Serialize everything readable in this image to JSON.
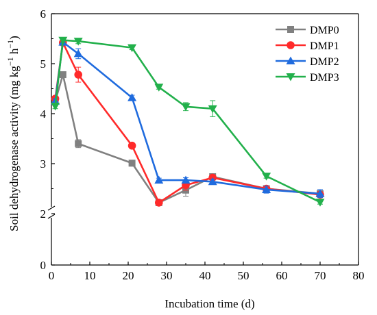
{
  "chart_data": {
    "type": "line",
    "xlabel": "Incubation time (d)",
    "ylabel": "Soil dehydrogenase activity (mg kg⁻¹ h⁻¹)",
    "ylabel_parts": [
      "Soil dehydrogenase activity (mg kg",
      "−1",
      " h",
      "−1",
      ")"
    ],
    "xlim": [
      0,
      80
    ],
    "ylim": [
      0,
      6
    ],
    "y_axis_break": [
      0,
      2
    ],
    "x_ticks": [
      "0",
      "10",
      "20",
      "30",
      "40",
      "50",
      "60",
      "70",
      "80"
    ],
    "y_ticks": [
      "0",
      "2",
      "3",
      "4",
      "5",
      "6"
    ],
    "legend_position": "top-right",
    "grid": false,
    "series": [
      {
        "name": "DMP0",
        "color": "#808080",
        "marker": "square",
        "points": [
          {
            "x": 1,
            "y": 4.25,
            "err": 0.05
          },
          {
            "x": 3,
            "y": 4.78,
            "err": 0.05
          },
          {
            "x": 7,
            "y": 3.4,
            "err": 0.08
          },
          {
            "x": 21,
            "y": 3.01,
            "err": 0.06
          },
          {
            "x": 28,
            "y": 2.22,
            "err": 0.04
          },
          {
            "x": 35,
            "y": 2.47,
            "err": 0.12
          },
          {
            "x": 42,
            "y": 2.74,
            "err": 0.05
          },
          {
            "x": 56,
            "y": 2.5,
            "err": 0.05
          },
          {
            "x": 70,
            "y": 2.4,
            "err": 0.05
          }
        ]
      },
      {
        "name": "DMP1",
        "color": "#ff2a2a",
        "marker": "circle",
        "points": [
          {
            "x": 1,
            "y": 4.3,
            "err": 0.05
          },
          {
            "x": 3,
            "y": 5.42,
            "err": 0.05
          },
          {
            "x": 7,
            "y": 4.78,
            "err": 0.15
          },
          {
            "x": 21,
            "y": 3.36,
            "err": 0.05
          },
          {
            "x": 28,
            "y": 2.22,
            "err": 0.04
          },
          {
            "x": 35,
            "y": 2.57,
            "err": 0.1
          },
          {
            "x": 42,
            "y": 2.72,
            "err": 0.05
          },
          {
            "x": 56,
            "y": 2.5,
            "err": 0.05
          },
          {
            "x": 70,
            "y": 2.38,
            "err": 0.05
          }
        ]
      },
      {
        "name": "DMP2",
        "color": "#1f6bde",
        "marker": "triangle-up",
        "points": [
          {
            "x": 1,
            "y": 4.25,
            "err": 0.05
          },
          {
            "x": 3,
            "y": 5.43,
            "err": 0.05
          },
          {
            "x": 7,
            "y": 5.2,
            "err": 0.1
          },
          {
            "x": 21,
            "y": 4.32,
            "err": 0.05
          },
          {
            "x": 28,
            "y": 2.67,
            "err": 0.04
          },
          {
            "x": 35,
            "y": 2.67,
            "err": 0.05
          },
          {
            "x": 42,
            "y": 2.64,
            "err": 0.05
          },
          {
            "x": 56,
            "y": 2.48,
            "err": 0.07
          },
          {
            "x": 70,
            "y": 2.4,
            "err": 0.08
          }
        ]
      },
      {
        "name": "DMP3",
        "color": "#22b04b",
        "marker": "triangle-down",
        "points": [
          {
            "x": 1,
            "y": 4.15,
            "err": 0.05
          },
          {
            "x": 3,
            "y": 5.47,
            "err": 0.05
          },
          {
            "x": 7,
            "y": 5.45,
            "err": 0.05
          },
          {
            "x": 21,
            "y": 5.32,
            "err": 0.04
          },
          {
            "x": 28,
            "y": 4.53,
            "err": 0.04
          },
          {
            "x": 35,
            "y": 4.14,
            "err": 0.08
          },
          {
            "x": 42,
            "y": 4.1,
            "err": 0.16
          },
          {
            "x": 56,
            "y": 2.75,
            "err": 0.04
          },
          {
            "x": 70,
            "y": 2.23,
            "err": 0.04
          }
        ]
      }
    ]
  }
}
